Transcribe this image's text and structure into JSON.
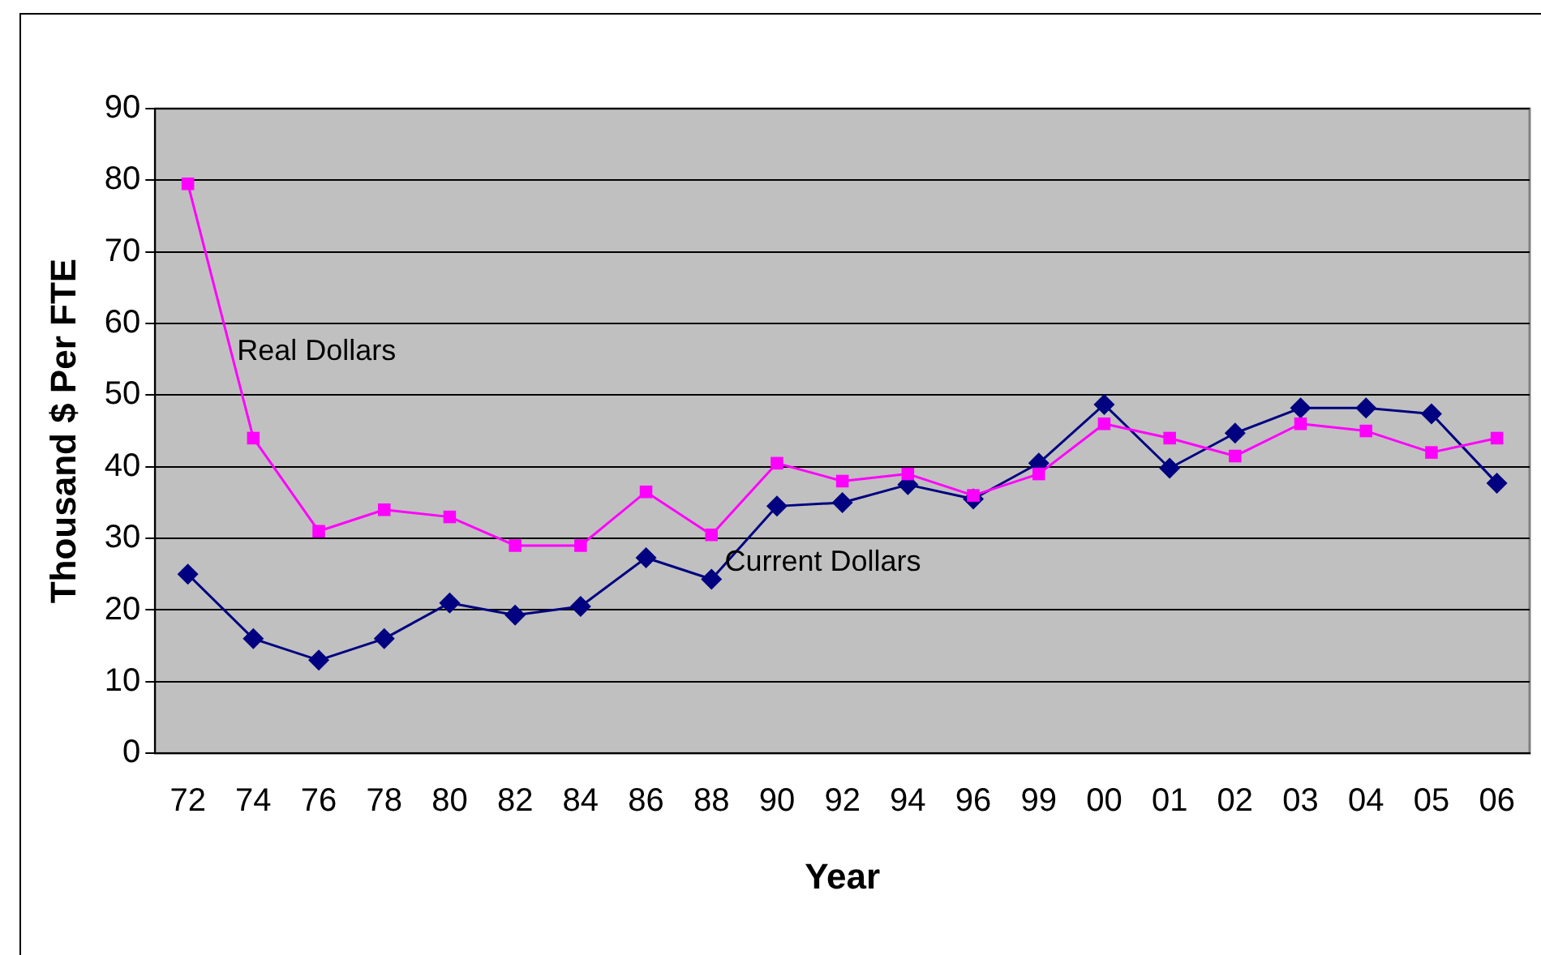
{
  "chart_data": {
    "type": "line",
    "xlabel": "Year",
    "ylabel": "Thousand $ Per FTE",
    "categories": [
      "72",
      "74",
      "76",
      "78",
      "80",
      "82",
      "84",
      "86",
      "88",
      "90",
      "92",
      "94",
      "96",
      "99",
      "00",
      "01",
      "02",
      "03",
      "04",
      "05",
      "06"
    ],
    "series": [
      {
        "name": "Real Dollars",
        "color": "#ff00ff",
        "marker": "square",
        "values": [
          79.5,
          44,
          31,
          34,
          33,
          29,
          29,
          36.5,
          30.5,
          40.5,
          38,
          39,
          36,
          39,
          46,
          44,
          41.5,
          46,
          45,
          42,
          44
        ]
      },
      {
        "name": "Current Dollars",
        "color": "#000080",
        "marker": "diamond",
        "values": [
          25,
          16,
          13,
          16,
          21,
          19.3,
          20.5,
          27.3,
          24.3,
          34.5,
          35,
          37.5,
          35.5,
          40.5,
          48.7,
          39.8,
          44.7,
          48.2,
          48.2,
          47.4,
          37.7
        ]
      }
    ],
    "ylim": [
      0,
      90
    ],
    "yticks": [
      0,
      10,
      20,
      30,
      40,
      50,
      60,
      70,
      80,
      90
    ],
    "grid": "y",
    "legend": false,
    "line_style": "solid"
  }
}
